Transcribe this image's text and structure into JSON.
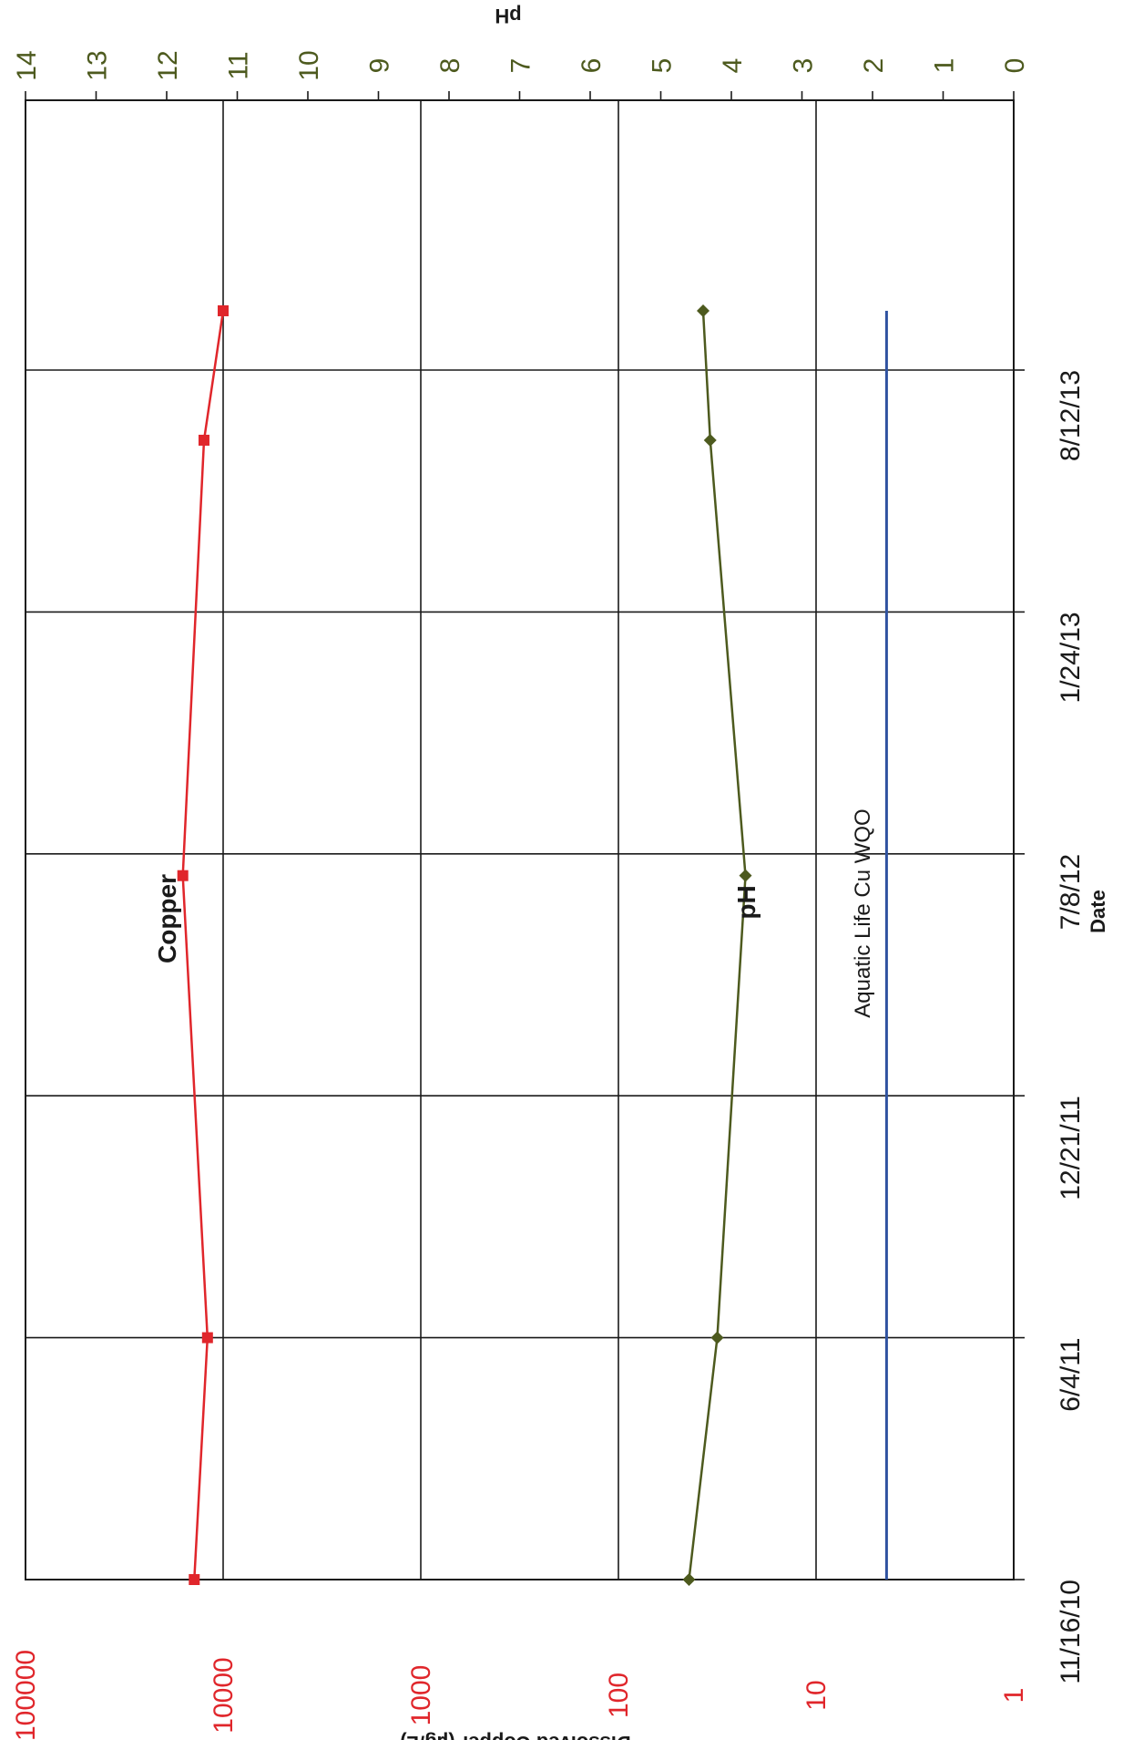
{
  "chart_data": {
    "type": "line",
    "x_axis": {
      "label": "Date",
      "ticks": [
        "11/16/10",
        "6/4/11",
        "12/21/11",
        "7/8/12",
        "1/24/13",
        "8/12/13"
      ],
      "range": [
        "2010-11-16",
        "2013-09-30"
      ]
    },
    "y_axis_left": {
      "label": "Dissolved Copper (µg/L)",
      "scale": "log",
      "range": [
        1,
        100000
      ],
      "ticks": [
        "1",
        "10",
        "100",
        "1000",
        "10000",
        "100000"
      ],
      "color": "#e0262b"
    },
    "y_axis_right": {
      "label": "pH",
      "scale": "linear",
      "range": [
        0,
        14
      ],
      "ticks": [
        "0",
        "1",
        "2",
        "3",
        "4",
        "5",
        "6",
        "7",
        "8",
        "9",
        "10",
        "11",
        "12",
        "13",
        "14"
      ],
      "color": "#4d5a1e"
    },
    "grid": true,
    "series": [
      {
        "name": "Copper",
        "axis": "left",
        "color": "#e0262b",
        "marker": "square",
        "points": [
          {
            "x": "2010-11-16",
            "y": 14000
          },
          {
            "x": "2011-06-04",
            "y": 12000
          },
          {
            "x": "2012-06-20",
            "y": 16000
          },
          {
            "x": "2013-06-15",
            "y": 12500
          },
          {
            "x": "2013-09-30",
            "y": 10000
          }
        ]
      },
      {
        "name": "pH",
        "axis": "right",
        "color": "#4d5a1e",
        "marker": "diamond",
        "points": [
          {
            "x": "2010-11-16",
            "y": 4.6
          },
          {
            "x": "2011-06-04",
            "y": 4.2
          },
          {
            "x": "2012-06-20",
            "y": 3.8
          },
          {
            "x": "2013-06-15",
            "y": 4.3
          },
          {
            "x": "2013-09-30",
            "y": 4.4
          }
        ]
      },
      {
        "name": "Aquatic Life Cu WQO",
        "axis": "left",
        "color": "#2f52a0",
        "marker": "none",
        "points": [
          {
            "x": "2010-11-16",
            "y": 4.4
          },
          {
            "x": "2013-09-30",
            "y": 4.4
          }
        ]
      }
    ],
    "annotations": [
      "Copper",
      "pH",
      "Aquatic Life Cu WQO"
    ]
  }
}
